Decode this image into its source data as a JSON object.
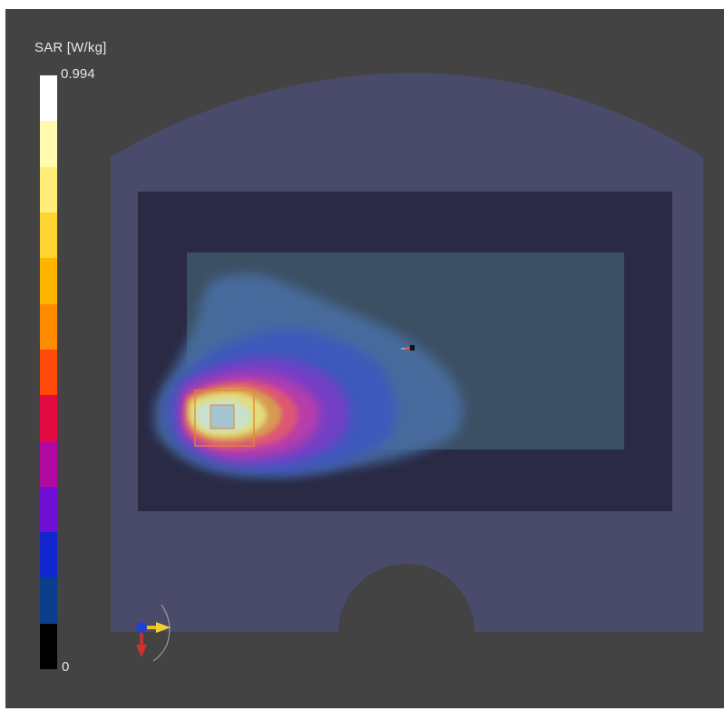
{
  "legend": {
    "title": "SAR [W/kg]",
    "max_label": "0.994",
    "min_label": "0",
    "colors": [
      "#ffffff",
      "#fffcb0",
      "#ffef78",
      "#ffd533",
      "#ffb400",
      "#ff8c00",
      "#ff4a0a",
      "#e40a42",
      "#b20aa0",
      "#6e10d4",
      "#1226d0",
      "#0a3d8c",
      "#000000"
    ]
  },
  "scene": {
    "phantom_color": "#4a4a6a",
    "inner_box_color": "#2a2a44",
    "substrate_color": "#3c5064",
    "probe_color": "#e08a2c"
  }
}
